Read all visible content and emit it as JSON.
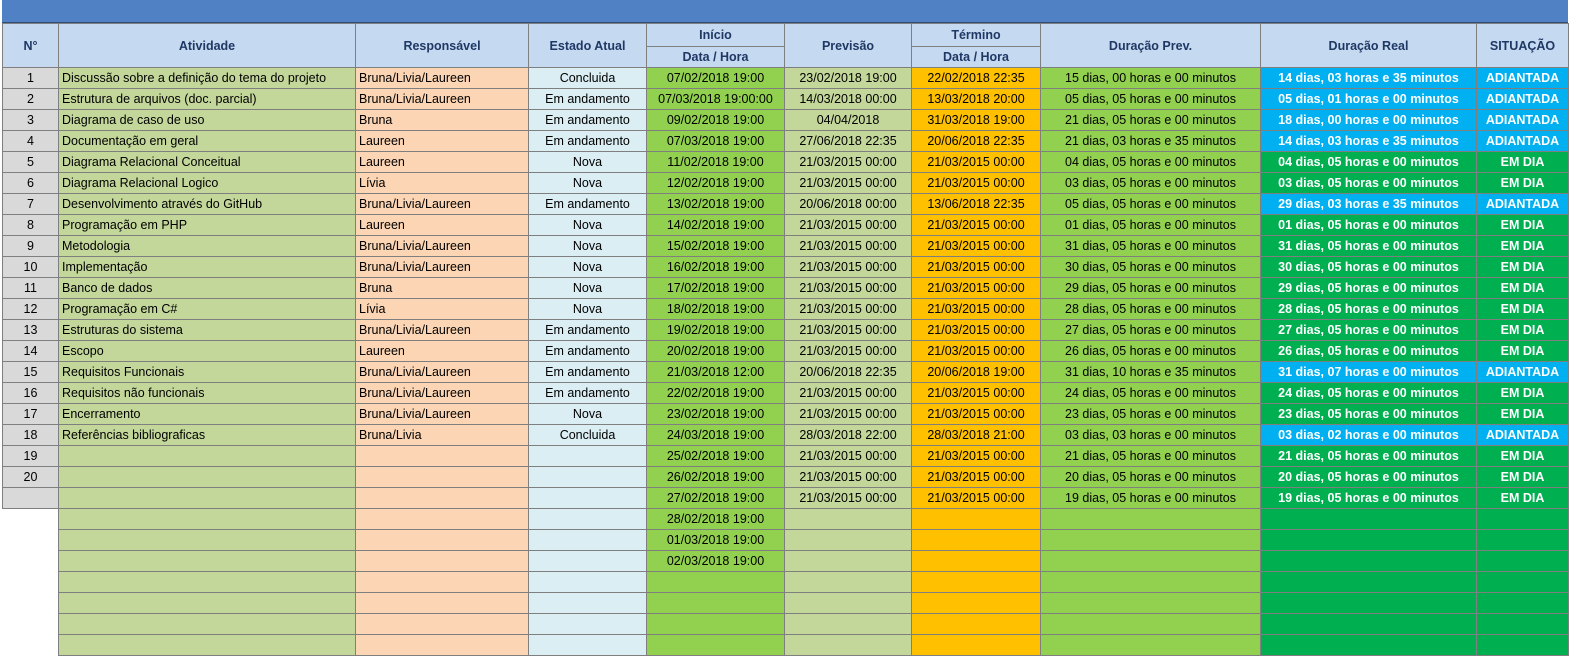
{
  "colors": {
    "header_bar": "#4f81c4",
    "header_cells": "#c5d9f1",
    "adiantada": "#00b0f0",
    "em_dia": "#00b050",
    "inicio": "#92d050",
    "termino": "#ffc000",
    "responsavel": "#fcd5b4",
    "estado": "#daeef3",
    "atividade": "#c4d79b"
  },
  "headers": {
    "num": "N°",
    "atividade": "Atividade",
    "responsavel": "Responsável",
    "estado": "Estado Atual",
    "inicio_top": "Início",
    "inicio_sub": "Data / Hora",
    "previsao": "Previsão",
    "termino_top": "Término",
    "termino_sub": "Data / Hora",
    "duracao_prev": "Duração Prev.",
    "duracao_real": "Duração Real",
    "situacao": "SITUAÇÃO"
  },
  "rows": [
    {
      "n": "1",
      "atividade": "Discussão sobre a definição do tema do projeto",
      "resp": "Bruna/Livia/Laureen",
      "estado": "Concluida",
      "inicio": "07/02/2018 19:00",
      "previsao": "23/02/2018 19:00",
      "termino": "22/02/2018 22:35",
      "dur_prev": "15 dias, 00 horas e 00 minutos",
      "dur_real": "14 dias, 03 horas e 35 minutos",
      "situacao": "ADIANTADA"
    },
    {
      "n": "2",
      "atividade": "Estrutura de arquivos (doc. parcial)",
      "resp": "Bruna/Livia/Laureen",
      "estado": "Em andamento",
      "inicio": "07/03/2018 19:00:00",
      "previsao": "14/03/2018 00:00",
      "termino": "13/03/2018 20:00",
      "dur_prev": "05 dias, 05 horas e 00 minutos",
      "dur_real": "05 dias, 01 horas e 00 minutos",
      "situacao": "ADIANTADA"
    },
    {
      "n": "3",
      "atividade": "Diagrama de caso de uso",
      "resp": "Bruna",
      "estado": "Em andamento",
      "inicio": "09/02/2018 19:00",
      "previsao": "04/04/2018",
      "termino": "31/03/2018 19:00",
      "dur_prev": "21 dias, 05 horas e 00 minutos",
      "dur_real": "18 dias, 00 horas e 00 minutos",
      "situacao": "ADIANTADA"
    },
    {
      "n": "4",
      "atividade": "Documentação em geral",
      "resp": "Laureen",
      "estado": "Em andamento",
      "inicio": "07/03/2018 19:00",
      "previsao": "27/06/2018 22:35",
      "termino": "20/06/2018 22:35",
      "dur_prev": "21 dias, 03 horas e 35 minutos",
      "dur_real": "14 dias, 03 horas e 35 minutos",
      "situacao": "ADIANTADA"
    },
    {
      "n": "5",
      "atividade": "Diagrama Relacional Conceitual",
      "resp": "Laureen",
      "estado": "Nova",
      "inicio": "11/02/2018 19:00",
      "previsao": "21/03/2015 00:00",
      "termino": "21/03/2015 00:00",
      "dur_prev": "04 dias, 05 horas e 00 minutos",
      "dur_real": "04 dias, 05 horas e 00 minutos",
      "situacao": "EM DIA"
    },
    {
      "n": "6",
      "atividade": "Diagrama Relacional Logico",
      "resp": "Lívia",
      "estado": "Nova",
      "inicio": "12/02/2018 19:00",
      "previsao": "21/03/2015 00:00",
      "termino": "21/03/2015 00:00",
      "dur_prev": "03 dias, 05 horas e 00 minutos",
      "dur_real": "03 dias, 05 horas e 00 minutos",
      "situacao": "EM DIA"
    },
    {
      "n": "7",
      "atividade": "Desenvolvimento através do GitHub",
      "resp": "Bruna/Livia/Laureen",
      "estado": "Em andamento",
      "inicio": "13/02/2018 19:00",
      "previsao": "20/06/2018 00:00",
      "termino": "13/06/2018 22:35",
      "dur_prev": "05 dias, 05 horas e 00 minutos",
      "dur_real": "29 dias, 03 horas e 35 minutos",
      "situacao": "ADIANTADA"
    },
    {
      "n": "8",
      "atividade": "Programação em PHP",
      "resp": "Laureen",
      "estado": "Nova",
      "inicio": "14/02/2018 19:00",
      "previsao": "21/03/2015 00:00",
      "termino": "21/03/2015 00:00",
      "dur_prev": "01 dias, 05 horas e 00 minutos",
      "dur_real": "01 dias, 05 horas e 00 minutos",
      "situacao": "EM DIA"
    },
    {
      "n": "9",
      "atividade": "Metodologia",
      "resp": "Bruna/Livia/Laureen",
      "estado": "Nova",
      "inicio": "15/02/2018 19:00",
      "previsao": "21/03/2015 00:00",
      "termino": "21/03/2015 00:00",
      "dur_prev": "31 dias, 05 horas e 00 minutos",
      "dur_real": "31 dias, 05 horas e 00 minutos",
      "situacao": "EM DIA"
    },
    {
      "n": "10",
      "atividade": "Implementação",
      "resp": "Bruna/Livia/Laureen",
      "estado": "Nova",
      "inicio": "16/02/2018 19:00",
      "previsao": "21/03/2015 00:00",
      "termino": "21/03/2015 00:00",
      "dur_prev": "30 dias, 05 horas e 00 minutos",
      "dur_real": "30 dias, 05 horas e 00 minutos",
      "situacao": "EM DIA"
    },
    {
      "n": "11",
      "atividade": "Banco de dados",
      "resp": "Bruna",
      "estado": "Nova",
      "inicio": "17/02/2018 19:00",
      "previsao": "21/03/2015 00:00",
      "termino": "21/03/2015 00:00",
      "dur_prev": "29 dias, 05 horas e 00 minutos",
      "dur_real": "29 dias, 05 horas e 00 minutos",
      "situacao": "EM DIA"
    },
    {
      "n": "12",
      "atividade": "Programação em C#",
      "resp": "Lívia",
      "estado": "Nova",
      "inicio": "18/02/2018 19:00",
      "previsao": "21/03/2015 00:00",
      "termino": "21/03/2015 00:00",
      "dur_prev": "28 dias, 05 horas e 00 minutos",
      "dur_real": "28 dias, 05 horas e 00 minutos",
      "situacao": "EM DIA"
    },
    {
      "n": "13",
      "atividade": "Estruturas do sistema",
      "resp": "Bruna/Livia/Laureen",
      "estado": "Em andamento",
      "inicio": "19/02/2018 19:00",
      "previsao": "21/03/2015 00:00",
      "termino": "21/03/2015 00:00",
      "dur_prev": "27 dias, 05 horas e 00 minutos",
      "dur_real": "27 dias, 05 horas e 00 minutos",
      "situacao": "EM DIA"
    },
    {
      "n": "14",
      "atividade": "Escopo",
      "resp": "Laureen",
      "estado": "Em andamento",
      "inicio": "20/02/2018 19:00",
      "previsao": "21/03/2015 00:00",
      "termino": "21/03/2015 00:00",
      "dur_prev": "26 dias, 05 horas e 00 minutos",
      "dur_real": "26 dias, 05 horas e 00 minutos",
      "situacao": "EM DIA"
    },
    {
      "n": "15",
      "atividade": "Requisitos Funcionais",
      "resp": "Bruna/Livia/Laureen",
      "estado": "Em andamento",
      "inicio": "21/03/2018 12:00",
      "previsao": "20/06/2018 22:35",
      "termino": "20/06/2018 19:00",
      "dur_prev": "31 dias, 10 horas e 35 minutos",
      "dur_real": "31 dias, 07 horas e 00 minutos",
      "situacao": "ADIANTADA"
    },
    {
      "n": "16",
      "atividade": "Requisitos não funcionais",
      "resp": "Bruna/Livia/Laureen",
      "estado": "Em andamento",
      "inicio": "22/02/2018 19:00",
      "previsao": "21/03/2015 00:00",
      "termino": "21/03/2015 00:00",
      "dur_prev": "24 dias, 05 horas e 00 minutos",
      "dur_real": "24 dias, 05 horas e 00 minutos",
      "situacao": "EM DIA"
    },
    {
      "n": "17",
      "atividade": "Encerramento",
      "resp": "Bruna/Livia/Laureen",
      "estado": "Nova",
      "inicio": "23/02/2018 19:00",
      "previsao": "21/03/2015 00:00",
      "termino": "21/03/2015 00:00",
      "dur_prev": "23 dias, 05 horas e 00 minutos",
      "dur_real": "23 dias, 05 horas e 00 minutos",
      "situacao": "EM DIA"
    },
    {
      "n": "18",
      "atividade": "Referências bibliograficas",
      "resp": "Bruna/Livia",
      "estado": "Concluida",
      "inicio": "24/03/2018 19:00",
      "previsao": "28/03/2018 22:00",
      "termino": "28/03/2018 21:00",
      "dur_prev": "03 dias, 03 horas e 00 minutos",
      "dur_real": "03 dias, 02 horas e 00 minutos",
      "situacao": "ADIANTADA"
    },
    {
      "n": "19",
      "atividade": "",
      "resp": "",
      "estado": "",
      "inicio": "25/02/2018 19:00",
      "previsao": "21/03/2015 00:00",
      "termino": "21/03/2015 00:00",
      "dur_prev": "21 dias, 05 horas e 00 minutos",
      "dur_real": "21 dias, 05 horas e 00 minutos",
      "situacao": "EM DIA"
    },
    {
      "n": "20",
      "atividade": "",
      "resp": "",
      "estado": "",
      "inicio": "26/02/2018 19:00",
      "previsao": "21/03/2015 00:00",
      "termino": "21/03/2015 00:00",
      "dur_prev": "20 dias, 05 horas e 00 minutos",
      "dur_real": "20 dias, 05 horas e 00 minutos",
      "situacao": "EM DIA"
    },
    {
      "n": "",
      "atividade": "",
      "resp": "",
      "estado": "",
      "inicio": "27/02/2018 19:00",
      "previsao": "21/03/2015 00:00",
      "termino": "21/03/2015 00:00",
      "dur_prev": "19 dias, 05 horas e 00 minutos",
      "dur_real": "19 dias, 05 horas e 00 minutos",
      "situacao": "EM DIA"
    },
    {
      "n": null,
      "atividade": "",
      "resp": "",
      "estado": "",
      "inicio": "28/02/2018 19:00",
      "previsao": "",
      "termino": "",
      "dur_prev": "",
      "dur_real": "",
      "situacao": ""
    },
    {
      "n": null,
      "atividade": "",
      "resp": "",
      "estado": "",
      "inicio": "01/03/2018 19:00",
      "previsao": "",
      "termino": "",
      "dur_prev": "",
      "dur_real": "",
      "situacao": ""
    },
    {
      "n": null,
      "atividade": "",
      "resp": "",
      "estado": "",
      "inicio": "02/03/2018 19:00",
      "previsao": "",
      "termino": "",
      "dur_prev": "",
      "dur_real": "",
      "situacao": ""
    },
    {
      "n": null,
      "atividade": "",
      "resp": "",
      "estado": "",
      "inicio": "",
      "previsao": "",
      "termino": "",
      "dur_prev": "",
      "dur_real": "",
      "situacao": ""
    },
    {
      "n": null,
      "atividade": "",
      "resp": "",
      "estado": "",
      "inicio": "",
      "previsao": "",
      "termino": "",
      "dur_prev": "",
      "dur_real": "",
      "situacao": ""
    },
    {
      "n": null,
      "atividade": "",
      "resp": "",
      "estado": "",
      "inicio": "",
      "previsao": "",
      "termino": "",
      "dur_prev": "",
      "dur_real": "",
      "situacao": ""
    },
    {
      "n": null,
      "atividade": "",
      "resp": "",
      "estado": "",
      "inicio": "",
      "previsao": "",
      "termino": "",
      "dur_prev": "",
      "dur_real": "",
      "situacao": ""
    }
  ]
}
